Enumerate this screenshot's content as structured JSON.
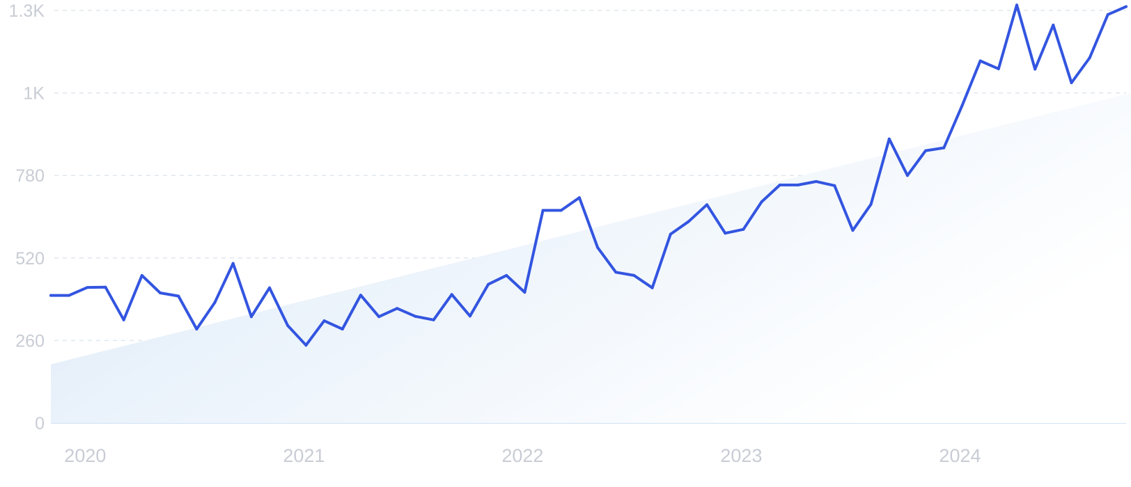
{
  "chart_data": {
    "type": "line",
    "title": "",
    "xlabel": "",
    "ylabel": "",
    "ylim": [
      0,
      1300
    ],
    "y_ticks": [
      {
        "value": 0,
        "label": "0"
      },
      {
        "value": 260,
        "label": "260"
      },
      {
        "value": 520,
        "label": "520"
      },
      {
        "value": 780,
        "label": "780"
      },
      {
        "value": 1040,
        "label": "1K"
      },
      {
        "value": 1300,
        "label": "1.3K"
      }
    ],
    "x_ticks": [
      "2020",
      "2021",
      "2022",
      "2023",
      "2024"
    ],
    "x_start": "2019-11",
    "x_end": "2024-10",
    "grid": true,
    "legend": "none",
    "colors": {
      "line": "#3355e0",
      "trend_fill_start": "#dbe9f8",
      "trend_fill_end": "#ffffff"
    },
    "trend": {
      "start": 185,
      "end": 1040
    },
    "series": [
      {
        "name": "",
        "x": [
          "2019-11",
          "2019-12",
          "2020-01",
          "2020-02",
          "2020-03",
          "2020-04",
          "2020-05",
          "2020-06",
          "2020-07",
          "2020-08",
          "2020-09",
          "2020-10",
          "2020-11",
          "2020-12",
          "2021-01",
          "2021-02",
          "2021-03",
          "2021-04",
          "2021-05",
          "2021-06",
          "2021-07",
          "2021-08",
          "2021-09",
          "2021-10",
          "2021-11",
          "2021-12",
          "2022-01",
          "2022-02",
          "2022-03",
          "2022-04",
          "2022-05",
          "2022-06",
          "2022-07",
          "2022-08",
          "2022-09",
          "2022-10",
          "2022-11",
          "2022-12",
          "2023-01",
          "2023-02",
          "2023-03",
          "2023-04",
          "2023-05",
          "2023-06",
          "2023-07",
          "2023-08",
          "2023-09",
          "2023-10",
          "2023-11",
          "2023-12",
          "2024-01",
          "2024-02",
          "2024-03",
          "2024-04",
          "2024-05",
          "2024-06",
          "2024-07",
          "2024-08",
          "2024-09",
          "2024-10"
        ],
        "values": [
          402,
          402,
          427,
          428,
          325,
          465,
          410,
          400,
          296,
          380,
          503,
          335,
          426,
          307,
          245,
          322,
          296,
          403,
          335,
          361,
          336,
          325,
          405,
          337,
          437,
          465,
          412,
          670,
          670,
          710,
          553,
          475,
          465,
          426,
          595,
          635,
          688,
          598,
          610,
          697,
          750,
          750,
          761,
          748,
          607,
          689,
          895,
          780,
          858,
          867,
          1000,
          1141,
          1116,
          1317,
          1115,
          1254,
          1072,
          1151,
          1287,
          1312
        ]
      }
    ]
  }
}
